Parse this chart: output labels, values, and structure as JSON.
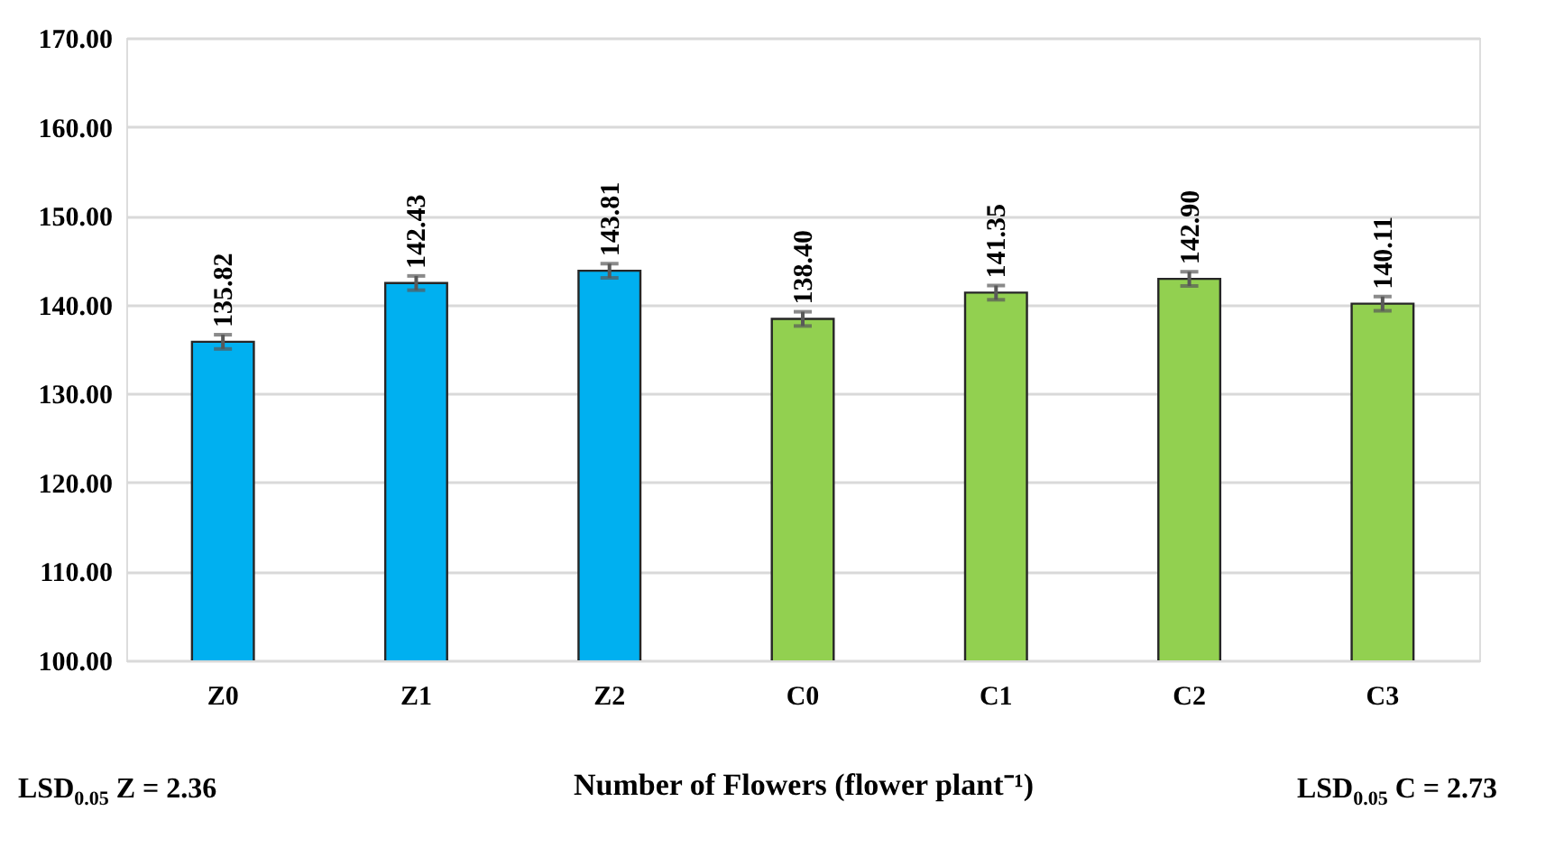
{
  "chart_data": {
    "type": "bar",
    "xlabel": "Number of Flowers (flower plant⁻¹)",
    "categories": [
      "Z0",
      "Z1",
      "Z2",
      "C0",
      "C1",
      "C2",
      "C3"
    ],
    "values": [
      135.82,
      142.43,
      143.81,
      138.4,
      141.35,
      142.9,
      140.11
    ],
    "value_labels": [
      "135.82",
      "142.43",
      "143.81",
      "138.40",
      "141.35",
      "142.90",
      "140.11"
    ],
    "colors": [
      "#00b0f0",
      "#00b0f0",
      "#00b0f0",
      "#92d050",
      "#92d050",
      "#92d050",
      "#92d050"
    ],
    "errors": [
      0.8,
      0.8,
      0.8,
      0.8,
      0.8,
      0.8,
      0.8
    ],
    "ylim": [
      100,
      170
    ],
    "yticks": [
      {
        "value": 100,
        "label": "100.00"
      },
      {
        "value": 110,
        "label": "110.00"
      },
      {
        "value": 120,
        "label": "120.00"
      },
      {
        "value": 130,
        "label": "130.00"
      },
      {
        "value": 140,
        "label": "140.00"
      },
      {
        "value": 150,
        "label": "150.00"
      },
      {
        "value": 160,
        "label": "160.00"
      },
      {
        "value": 170,
        "label": "170.00"
      }
    ],
    "grid": "y",
    "annotations": [
      "LSD$_{0.05}$ Z = 2.36",
      "LSD$_{0.05}$ C = 2.73"
    ]
  }
}
